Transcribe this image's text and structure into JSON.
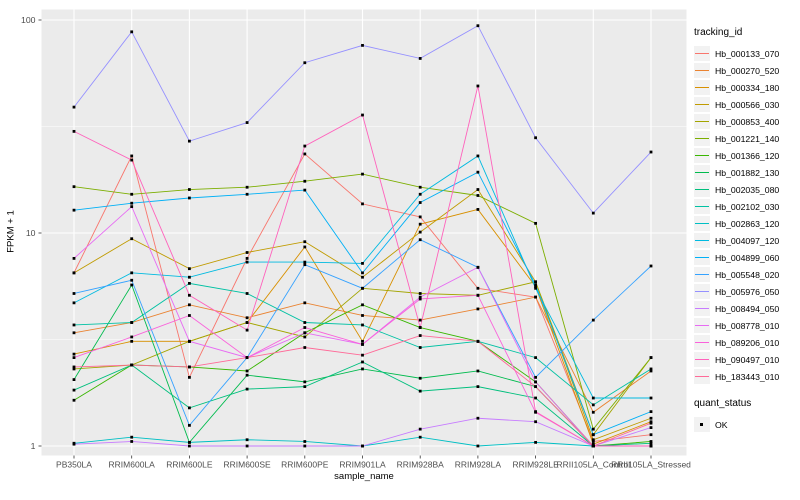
{
  "figure": {
    "xlabel": "sample_name",
    "ylabel": "FPKM + 1",
    "tracking_legend_title": "tracking_id",
    "quant_legend_title": "quant_status",
    "quant_status_value": "OK"
  },
  "colors": {
    "panel_bg": "#EBEBEB",
    "grid": "#FFFFFF",
    "tick_text": "#4D4D4D",
    "tick_mark": "#333333",
    "marker": "#000000",
    "legend_key_bg": "#F2F2F2"
  },
  "chart_data": {
    "type": "line",
    "title": "",
    "xlabel": "sample_name",
    "ylabel": "FPKM + 1",
    "x_type": "categorical",
    "categories": [
      "PB350LA",
      "RRIM600LA",
      "RRIM600LE",
      "RRIM600SE",
      "RRIM600PE",
      "RRIM901LA",
      "RRIM928BA",
      "RRIM928LA",
      "RRIM928LE",
      "RRII105LA_Control",
      "RRII105LA_Stressed"
    ],
    "y_scale": "log10",
    "y_tick_labels": [
      "1",
      "10",
      "100"
    ],
    "y_ticks": [
      1,
      10,
      100
    ],
    "y_minor_ticks": [
      3.1623,
      31.623
    ],
    "ylim": [
      0.91,
      111
    ],
    "grid": true,
    "legend_position": "right",
    "marker": "black-square",
    "series": [
      {
        "name": "Hb_000133_070",
        "color": "#F8766D",
        "values": [
          6.5,
          23,
          2.1,
          7.6,
          23.5,
          13.7,
          11.9,
          5.5,
          5.0,
          1.05,
          1.13
        ]
      },
      {
        "name": "Hb_000270_520",
        "color": "#EA8331",
        "values": [
          3.4,
          3.8,
          4.6,
          4.0,
          4.7,
          4.1,
          3.9,
          4.4,
          5.0,
          1.44,
          2.25
        ]
      },
      {
        "name": "Hb_000334_180",
        "color": "#D89000",
        "values": [
          2.7,
          3.1,
          3.1,
          3.8,
          8.6,
          3.1,
          11.0,
          12.9,
          5.6,
          1.02,
          1.3
        ]
      },
      {
        "name": "Hb_000566_030",
        "color": "#C09B00",
        "values": [
          6.5,
          9.4,
          6.8,
          8.1,
          9.1,
          6.2,
          10.1,
          16.0,
          5.9,
          1.07,
          1.35
        ]
      },
      {
        "name": "Hb_000853_400",
        "color": "#A3A500",
        "values": [
          2.3,
          2.4,
          3.1,
          3.8,
          3.25,
          5.5,
          5.2,
          5.1,
          5.9,
          1.13,
          2.6
        ]
      },
      {
        "name": "Hb_001221_140",
        "color": "#7CAE00",
        "values": [
          16.5,
          15.2,
          16.0,
          16.4,
          17.5,
          18.9,
          16.4,
          15.0,
          11.1,
          1.2,
          2.6
        ]
      },
      {
        "name": "Hb_001366_120",
        "color": "#39B600",
        "values": [
          1.64,
          2.4,
          2.35,
          2.25,
          3.4,
          4.6,
          3.6,
          3.1,
          2.0,
          1.0,
          1.05
        ]
      },
      {
        "name": "Hb_001882_130",
        "color": "#00BB4E",
        "values": [
          2.05,
          5.7,
          1.04,
          2.15,
          2.0,
          2.3,
          2.08,
          2.25,
          1.9,
          1.0,
          1.0
        ]
      },
      {
        "name": "Hb_002035_080",
        "color": "#00BF7D",
        "values": [
          1.83,
          2.4,
          1.51,
          1.85,
          1.9,
          2.48,
          1.81,
          1.9,
          1.68,
          1.0,
          1.03
        ]
      },
      {
        "name": "Hb_002102_030",
        "color": "#00C1A3",
        "values": [
          3.7,
          3.8,
          5.8,
          5.2,
          3.8,
          3.7,
          2.9,
          3.1,
          2.6,
          1.56,
          2.3
        ]
      },
      {
        "name": "Hb_002863_120",
        "color": "#00BFC4",
        "values": [
          1.03,
          1.1,
          1.04,
          1.07,
          1.05,
          1.0,
          1.1,
          1.0,
          1.04,
          1.0,
          1.0
        ]
      },
      {
        "name": "Hb_004097_120",
        "color": "#00BAE0",
        "values": [
          4.7,
          6.5,
          6.2,
          7.3,
          7.3,
          7.2,
          15.2,
          23.0,
          5.5,
          1.68,
          1.68
        ]
      },
      {
        "name": "Hb_004899_060",
        "color": "#00B0F6",
        "values": [
          12.8,
          13.8,
          14.6,
          15.2,
          15.9,
          6.5,
          13.9,
          19.3,
          5.7,
          1.13,
          1.45
        ]
      },
      {
        "name": "Hb_005548_020",
        "color": "#35A2FF",
        "values": [
          5.2,
          6.0,
          1.25,
          2.6,
          7.1,
          5.5,
          9.3,
          6.9,
          2.1,
          3.9,
          7.0
        ]
      },
      {
        "name": "Hb_005976_050",
        "color": "#9590FF",
        "values": [
          39,
          88,
          27,
          33,
          63,
          76,
          66,
          94,
          28,
          12.4,
          24
        ]
      },
      {
        "name": "Hb_008494_050",
        "color": "#C77CFF",
        "values": [
          1.02,
          1.05,
          1.0,
          1.0,
          1.0,
          1.0,
          1.2,
          1.35,
          1.3,
          1.0,
          1.22
        ]
      },
      {
        "name": "Hb_008778_010",
        "color": "#E76BF3",
        "values": [
          7.6,
          13.3,
          3.1,
          2.6,
          3.4,
          3.0,
          5.0,
          6.9,
          2.0,
          1.0,
          1.0
        ]
      },
      {
        "name": "Hb_089206_010",
        "color": "#FA62DB",
        "values": [
          2.6,
          3.25,
          4.1,
          2.6,
          3.6,
          3.0,
          4.9,
          5.1,
          1.44,
          1.0,
          1.0
        ]
      },
      {
        "name": "Hb_090497_010",
        "color": "#FF62BC",
        "values": [
          30,
          22,
          5.1,
          3.5,
          25.6,
          35.8,
          3.6,
          49,
          1.45,
          1.0,
          1.0
        ]
      },
      {
        "name": "Hb_183443_010",
        "color": "#FF6A98",
        "values": [
          2.35,
          2.4,
          2.35,
          2.6,
          2.9,
          2.67,
          3.3,
          3.1,
          1.9,
          1.0,
          1.28
        ]
      }
    ]
  }
}
